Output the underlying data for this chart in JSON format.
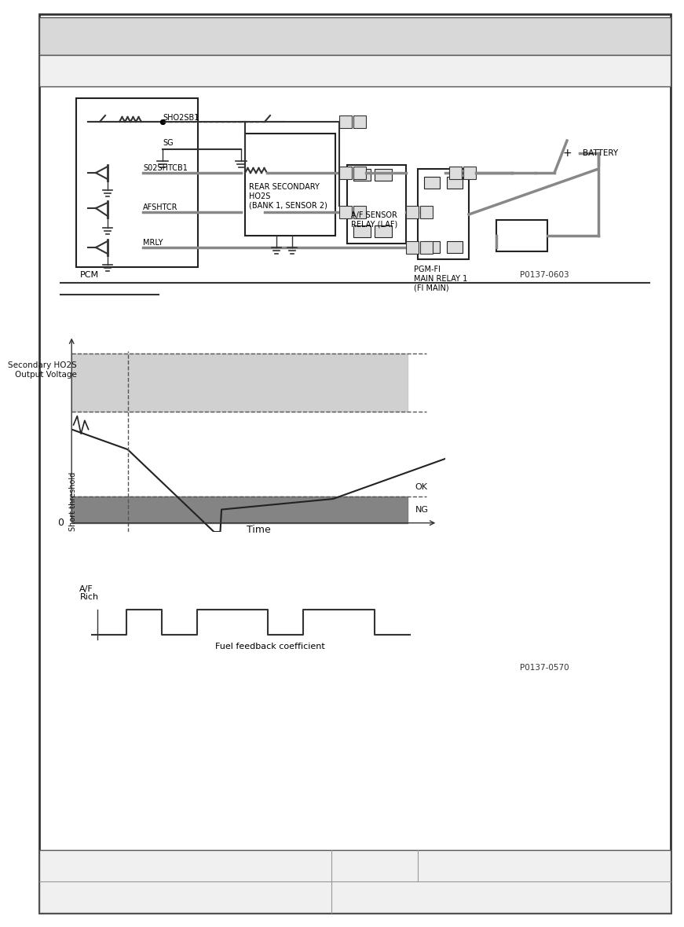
{
  "page_bg": "#ffffff",
  "border_color": "#555555",
  "header_bg": "#d8d8d8",
  "header2_bg": "#f0f0f0",
  "footer_bg": "#f0f0f0",
  "circuit_diagram_label": "P0137-0603",
  "graph_label": "P0137-0570",
  "secondary_ho2s_ylabel": "Secondary HO2S\nOutput Voltage",
  "short_threshold_label": "Short threshold",
  "time_label": "Time",
  "zero_label": "0",
  "ok_label": "OK",
  "ng_label": "NG",
  "af_ylabel": "A/F",
  "rich_label": "Rich",
  "fuel_feedback_label": "Fuel feedback coefficient",
  "pcm_label": "PCM",
  "battery_label": "BATTERY",
  "rear_secondary_ho2s_label": "REAR SECONDARY\nHO2S\n(BANK 1, SENSOR 2)",
  "af_sensor_relay_label": "A/F SENSOR\nRELAY (LAF)",
  "pgmfi_relay_label": "PGM-FI\nMAIN RELAY 1\n(FI MAIN)",
  "sho2sb1_label": "SHO2SB1",
  "sg_label": "SG",
  "so2shtcb1_label": "S02SHTCB1",
  "afshtcr_label": "AFSHTCR",
  "mrly_label": "MRLY",
  "gray_fill": "#c8c8c8",
  "dark_gray_fill": "#888888",
  "light_gray_graph": "#c8c8c8",
  "dark_strip": "#777777"
}
